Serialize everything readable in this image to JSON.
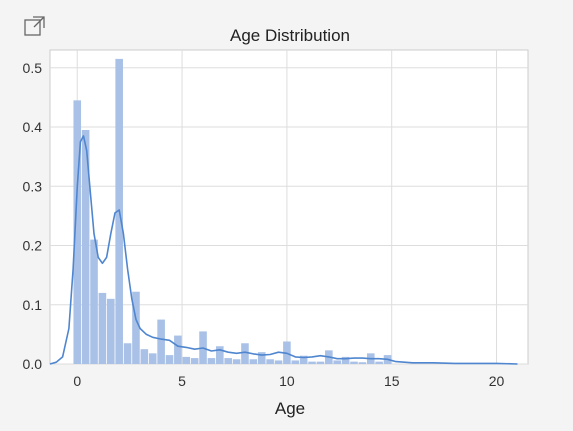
{
  "toolbar": {
    "popout_icon": "popout-icon"
  },
  "chart_data": {
    "type": "bar",
    "title": "Age Distribution",
    "xlabel": "Age",
    "ylabel": "",
    "xlim": [
      -1.3,
      21.5
    ],
    "ylim": [
      0,
      0.53
    ],
    "xticks": [
      0,
      5,
      10,
      15,
      20
    ],
    "yticks": [
      0.0,
      0.1,
      0.2,
      0.3,
      0.4,
      0.5
    ],
    "ytick_labels": [
      "0.0",
      "0.1",
      "0.2",
      "0.3",
      "0.4",
      "0.5"
    ],
    "grid": true,
    "colors": {
      "bar": "#a9c1e6",
      "kde": "#4f86cf",
      "grid": "#dddddd",
      "axis": "#cccccc"
    },
    "histogram": {
      "bin_width": 0.4,
      "bins": [
        {
          "x0": -0.2,
          "density": 0.445
        },
        {
          "x0": 0.2,
          "density": 0.395
        },
        {
          "x0": 0.6,
          "density": 0.21
        },
        {
          "x0": 1.0,
          "density": 0.12
        },
        {
          "x0": 1.4,
          "density": 0.11
        },
        {
          "x0": 1.8,
          "density": 0.515
        },
        {
          "x0": 2.2,
          "density": 0.035
        },
        {
          "x0": 2.6,
          "density": 0.122
        },
        {
          "x0": 3.0,
          "density": 0.025
        },
        {
          "x0": 3.4,
          "density": 0.018
        },
        {
          "x0": 3.8,
          "density": 0.075
        },
        {
          "x0": 4.2,
          "density": 0.015
        },
        {
          "x0": 4.6,
          "density": 0.048
        },
        {
          "x0": 5.0,
          "density": 0.012
        },
        {
          "x0": 5.4,
          "density": 0.01
        },
        {
          "x0": 5.8,
          "density": 0.055
        },
        {
          "x0": 6.2,
          "density": 0.01
        },
        {
          "x0": 6.6,
          "density": 0.03
        },
        {
          "x0": 7.0,
          "density": 0.01
        },
        {
          "x0": 7.4,
          "density": 0.008
        },
        {
          "x0": 7.8,
          "density": 0.035
        },
        {
          "x0": 8.2,
          "density": 0.008
        },
        {
          "x0": 8.6,
          "density": 0.02
        },
        {
          "x0": 9.0,
          "density": 0.008
        },
        {
          "x0": 9.4,
          "density": 0.006
        },
        {
          "x0": 9.8,
          "density": 0.038
        },
        {
          "x0": 10.2,
          "density": 0.006
        },
        {
          "x0": 10.6,
          "density": 0.014
        },
        {
          "x0": 11.0,
          "density": 0.004
        },
        {
          "x0": 11.4,
          "density": 0.004
        },
        {
          "x0": 11.8,
          "density": 0.023
        },
        {
          "x0": 12.2,
          "density": 0.006
        },
        {
          "x0": 12.6,
          "density": 0.012
        },
        {
          "x0": 13.0,
          "density": 0.004
        },
        {
          "x0": 13.4,
          "density": 0.003
        },
        {
          "x0": 13.8,
          "density": 0.018
        },
        {
          "x0": 14.2,
          "density": 0.004
        },
        {
          "x0": 14.6,
          "density": 0.015
        }
      ]
    },
    "kde": {
      "x": [
        -1.3,
        -1.0,
        -0.7,
        -0.4,
        -0.2,
        0.0,
        0.15,
        0.3,
        0.45,
        0.6,
        0.8,
        1.0,
        1.2,
        1.4,
        1.6,
        1.8,
        2.0,
        2.2,
        2.4,
        2.6,
        2.8,
        3.0,
        3.3,
        3.6,
        4.0,
        4.4,
        4.8,
        5.2,
        5.6,
        6.0,
        6.4,
        6.8,
        7.2,
        7.6,
        8.0,
        8.4,
        8.8,
        9.2,
        9.6,
        10.0,
        10.4,
        10.8,
        11.2,
        11.6,
        12.0,
        12.4,
        12.8,
        13.2,
        13.6,
        14.0,
        14.4,
        14.8,
        15.2,
        15.6,
        16.0,
        17.0,
        18.0,
        19.0,
        20.0,
        21.0
      ],
      "y": [
        0.0,
        0.003,
        0.012,
        0.06,
        0.16,
        0.3,
        0.375,
        0.385,
        0.36,
        0.3,
        0.22,
        0.18,
        0.17,
        0.18,
        0.22,
        0.255,
        0.26,
        0.22,
        0.16,
        0.11,
        0.075,
        0.06,
        0.05,
        0.045,
        0.042,
        0.04,
        0.03,
        0.028,
        0.025,
        0.027,
        0.022,
        0.024,
        0.02,
        0.018,
        0.02,
        0.017,
        0.015,
        0.016,
        0.02,
        0.018,
        0.012,
        0.011,
        0.012,
        0.014,
        0.012,
        0.009,
        0.009,
        0.01,
        0.01,
        0.009,
        0.009,
        0.008,
        0.004,
        0.003,
        0.002,
        0.002,
        0.001,
        0.001,
        0.001,
        0.0
      ]
    }
  }
}
